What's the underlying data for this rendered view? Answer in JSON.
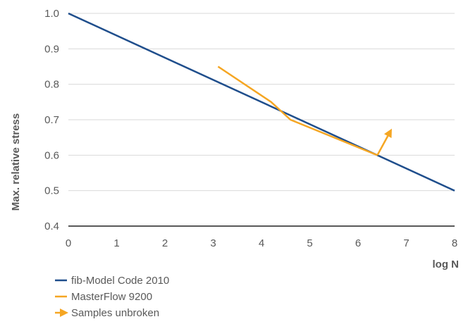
{
  "chart_data": {
    "type": "line",
    "xlabel": "log N",
    "ylabel": "Max. relative stress",
    "xlim": [
      0,
      8
    ],
    "ylim": [
      0.4,
      1.0
    ],
    "x_ticks": [
      "0",
      "1",
      "2",
      "3",
      "4",
      "5",
      "6",
      "7",
      "8"
    ],
    "y_ticks": [
      "0.4",
      "0.5",
      "0.6",
      "0.7",
      "0.8",
      "0.9",
      "1.0"
    ],
    "grid": "horizontal",
    "legend_position": "bottom-left",
    "series": [
      {
        "name": "fib-Model Code 2010",
        "color": "#1f4e8c",
        "points": [
          [
            0,
            1.0
          ],
          [
            8,
            0.5
          ]
        ]
      },
      {
        "name": "MasterFlow 9200",
        "color": "#f5a623",
        "points": [
          [
            3.1,
            0.85
          ],
          [
            4.2,
            0.75
          ],
          [
            4.6,
            0.7
          ],
          [
            6.4,
            0.6
          ]
        ]
      }
    ],
    "annotations": [
      {
        "name": "Samples unbroken",
        "type": "arrow",
        "color": "#f5a623",
        "from": [
          6.4,
          0.6
        ],
        "to": [
          6.7,
          0.675
        ]
      }
    ]
  }
}
